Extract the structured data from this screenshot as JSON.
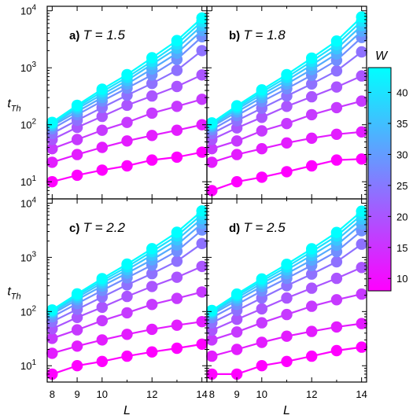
{
  "colorbar": {
    "label": "W",
    "ticks": [
      10,
      15,
      20,
      25,
      30,
      35,
      40
    ],
    "range": [
      8,
      44
    ],
    "color_low": "#ff00ff",
    "color_high": "#00ffff"
  },
  "axes": {
    "xlabel": "L",
    "ylabel_main": "t",
    "ylabel_sub": "Th",
    "xticks": [
      8,
      9,
      10,
      12,
      14
    ],
    "x_range": [
      7.8,
      14.2
    ],
    "ylim": [
      5,
      12000
    ],
    "yscale": "log",
    "ytick_base": "10",
    "ytick_exponents": [
      "1",
      "2",
      "3",
      "4"
    ]
  },
  "chart_data": [
    {
      "type": "line",
      "panel_letter": "a)",
      "panel_eq": "T = 1.5",
      "x": [
        8,
        9,
        10,
        11,
        12,
        13,
        14
      ],
      "series": [
        {
          "W": 8,
          "values": [
            10,
            13,
            16,
            19,
            24,
            27,
            33
          ]
        },
        {
          "W": 12,
          "values": [
            22,
            30,
            40,
            52,
            65,
            80,
            100
          ]
        },
        {
          "W": 16,
          "values": [
            38,
            55,
            80,
            110,
            160,
            210,
            280
          ]
        },
        {
          "W": 20,
          "values": [
            55,
            90,
            140,
            220,
            320,
            470,
            750
          ]
        },
        {
          "W": 24,
          "values": [
            70,
            120,
            200,
            330,
            530,
            900,
            2000
          ]
        },
        {
          "W": 28,
          "values": [
            85,
            150,
            260,
            440,
            750,
            1400,
            3500
          ]
        },
        {
          "W": 32,
          "values": [
            95,
            170,
            300,
            520,
            950,
            1800,
            4500
          ]
        },
        {
          "W": 36,
          "values": [
            100,
            190,
            340,
            600,
            1150,
            2200,
            5500
          ]
        },
        {
          "W": 40,
          "values": [
            105,
            205,
            380,
            680,
            1300,
            2600,
            6500
          ]
        },
        {
          "W": 44,
          "values": [
            110,
            220,
            420,
            760,
            1500,
            3000,
            7500
          ]
        }
      ]
    },
    {
      "type": "line",
      "panel_letter": "b)",
      "panel_eq": "T = 1.8",
      "x": [
        8,
        9,
        10,
        11,
        12,
        13,
        14
      ],
      "series": [
        {
          "W": 8,
          "values": [
            7,
            10,
            12,
            15,
            19,
            24,
            25
          ]
        },
        {
          "W": 12,
          "values": [
            22,
            30,
            38,
            48,
            58,
            68,
            75
          ]
        },
        {
          "W": 16,
          "values": [
            38,
            52,
            78,
            105,
            150,
            200,
            260
          ]
        },
        {
          "W": 20,
          "values": [
            55,
            88,
            135,
            210,
            310,
            460,
            720
          ]
        },
        {
          "W": 24,
          "values": [
            70,
            118,
            195,
            320,
            520,
            880,
            1900
          ]
        },
        {
          "W": 28,
          "values": [
            82,
            145,
            255,
            430,
            740,
            1350,
            3400
          ]
        },
        {
          "W": 32,
          "values": [
            92,
            168,
            300,
            520,
            930,
            1750,
            4400
          ]
        },
        {
          "W": 36,
          "values": [
            98,
            185,
            340,
            600,
            1120,
            2150,
            5500
          ]
        },
        {
          "W": 40,
          "values": [
            103,
            200,
            375,
            680,
            1300,
            2550,
            6600
          ]
        },
        {
          "W": 44,
          "values": [
            108,
            215,
            410,
            760,
            1480,
            2950,
            7800
          ]
        }
      ]
    },
    {
      "type": "line",
      "panel_letter": "c)",
      "panel_eq": "T = 2.2",
      "x": [
        8,
        9,
        10,
        11,
        12,
        13,
        14
      ],
      "series": [
        {
          "W": 8,
          "values": [
            7,
            10,
            12,
            15,
            18,
            21,
            25
          ]
        },
        {
          "W": 12,
          "values": [
            17,
            23,
            30,
            38,
            47,
            56,
            65
          ]
        },
        {
          "W": 16,
          "values": [
            32,
            46,
            68,
            95,
            135,
            175,
            230
          ]
        },
        {
          "W": 20,
          "values": [
            48,
            78,
            120,
            190,
            290,
            430,
            680
          ]
        },
        {
          "W": 24,
          "values": [
            65,
            110,
            185,
            310,
            500,
            850,
            1800
          ]
        },
        {
          "W": 28,
          "values": [
            80,
            140,
            245,
            420,
            720,
            1300,
            3200
          ]
        },
        {
          "W": 32,
          "values": [
            90,
            165,
            295,
            510,
            900,
            1700,
            4200
          ]
        },
        {
          "W": 36,
          "values": [
            97,
            182,
            335,
            590,
            1100,
            2100,
            5200
          ]
        },
        {
          "W": 40,
          "values": [
            102,
            198,
            370,
            670,
            1280,
            2500,
            6200
          ]
        },
        {
          "W": 44,
          "values": [
            107,
            212,
            405,
            750,
            1450,
            2900,
            7200
          ]
        }
      ]
    },
    {
      "type": "line",
      "panel_letter": "d)",
      "panel_eq": "T = 2.5",
      "x": [
        8,
        9,
        10,
        11,
        12,
        13,
        14
      ],
      "series": [
        {
          "W": 8,
          "values": [
            7,
            7,
            10,
            12,
            15,
            19,
            22
          ]
        },
        {
          "W": 12,
          "values": [
            15,
            20,
            27,
            35,
            43,
            52,
            60
          ]
        },
        {
          "W": 16,
          "values": [
            30,
            42,
            62,
            88,
            125,
            165,
            210
          ]
        },
        {
          "W": 20,
          "values": [
            45,
            72,
            112,
            178,
            270,
            410,
            650
          ]
        },
        {
          "W": 24,
          "values": [
            62,
            105,
            178,
            300,
            490,
            830,
            1750
          ]
        },
        {
          "W": 28,
          "values": [
            77,
            135,
            240,
            410,
            710,
            1280,
            3100
          ]
        },
        {
          "W": 32,
          "values": [
            88,
            160,
            290,
            500,
            890,
            1680,
            4100
          ]
        },
        {
          "W": 36,
          "values": [
            95,
            178,
            330,
            585,
            1090,
            2080,
            5100
          ]
        },
        {
          "W": 40,
          "values": [
            100,
            195,
            365,
            665,
            1270,
            2480,
            6100
          ]
        },
        {
          "W": 44,
          "values": [
            105,
            210,
            400,
            745,
            1440,
            2880,
            7100
          ]
        }
      ]
    }
  ]
}
